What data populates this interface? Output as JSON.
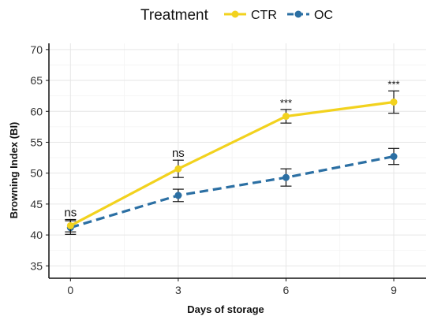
{
  "chart_data": {
    "type": "line",
    "xlabel": "Days of storage",
    "ylabel": "Browning Index (BI)",
    "x": [
      0,
      3,
      6,
      9
    ],
    "xticks": [
      "0",
      "3",
      "6",
      "9"
    ],
    "ylim": [
      33,
      71
    ],
    "yticks": [
      35,
      40,
      45,
      50,
      55,
      60,
      65,
      70
    ],
    "grid": true,
    "legend": {
      "title": "Treatment",
      "position": "top"
    },
    "series": [
      {
        "name": "CTR",
        "color": "#F2D21E",
        "dash": "solid",
        "values": [
          41.5,
          50.7,
          59.2,
          61.5
        ],
        "error": [
          1.0,
          1.4,
          1.1,
          1.8
        ]
      },
      {
        "name": "OC",
        "color": "#2B6FA3",
        "dash": "dashed",
        "values": [
          41.2,
          46.4,
          49.3,
          52.7
        ],
        "error": [
          1.1,
          1.0,
          1.4,
          1.3
        ]
      }
    ],
    "annotations": [
      "ns",
      "ns",
      "***",
      "***"
    ]
  }
}
